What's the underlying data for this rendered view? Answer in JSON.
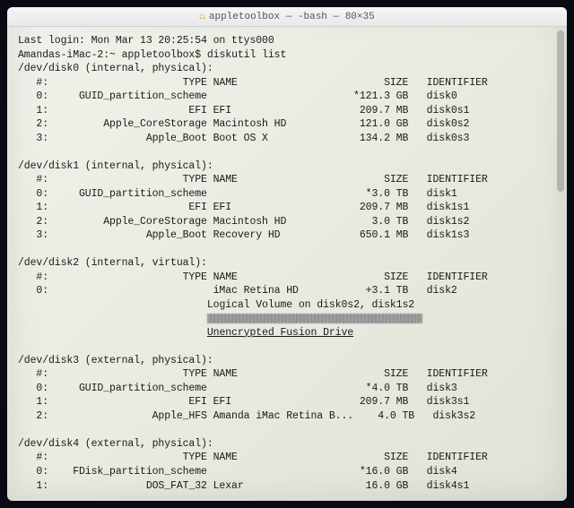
{
  "title": "appletoolbox — -bash — 80×35",
  "lastLogin": "Last login: Mon Mar 13 20:25:54 on ttys000",
  "prompt": "Amandas-iMac-2:~ appletoolbox$",
  "command": "diskutil list",
  "headers": {
    "num": "#:",
    "type": "TYPE",
    "name": "NAME",
    "size": "SIZE",
    "identifier": "IDENTIFIER"
  },
  "disk0": {
    "header": "/dev/disk0 (internal, physical):",
    "rows": [
      {
        "n": "0:",
        "type": "GUID_partition_scheme",
        "name": "",
        "size": "*121.3 GB",
        "id": "disk0"
      },
      {
        "n": "1:",
        "type": "EFI",
        "name": "EFI",
        "size": "209.7 MB",
        "id": "disk0s1"
      },
      {
        "n": "2:",
        "type": "Apple_CoreStorage",
        "name": "Macintosh HD",
        "size": "121.0 GB",
        "id": "disk0s2"
      },
      {
        "n": "3:",
        "type": "Apple_Boot",
        "name": "Boot OS X",
        "size": "134.2 MB",
        "id": "disk0s3"
      }
    ]
  },
  "disk1": {
    "header": "/dev/disk1 (internal, physical):",
    "rows": [
      {
        "n": "0:",
        "type": "GUID_partition_scheme",
        "name": "",
        "size": "*3.0 TB",
        "id": "disk1"
      },
      {
        "n": "1:",
        "type": "EFI",
        "name": "EFI",
        "size": "209.7 MB",
        "id": "disk1s1"
      },
      {
        "n": "2:",
        "type": "Apple_CoreStorage",
        "name": "Macintosh HD",
        "size": "3.0 TB",
        "id": "disk1s2"
      },
      {
        "n": "3:",
        "type": "Apple_Boot",
        "name": "Recovery HD",
        "size": "650.1 MB",
        "id": "disk1s3"
      }
    ]
  },
  "disk2": {
    "header": "/dev/disk2 (internal, virtual):",
    "row0": {
      "n": "0:",
      "type": "",
      "name": "iMac Retina HD",
      "size": "+3.1 TB",
      "id": "disk2"
    },
    "logical": "Logical Volume on disk0s2, disk1s2",
    "fusion": "Unencrypted Fusion Drive"
  },
  "disk3": {
    "header": "/dev/disk3 (external, physical):",
    "rows": [
      {
        "n": "0:",
        "type": "GUID_partition_scheme",
        "name": "",
        "size": "*4.0 TB",
        "id": "disk3"
      },
      {
        "n": "1:",
        "type": "EFI",
        "name": "EFI",
        "size": "209.7 MB",
        "id": "disk3s1"
      },
      {
        "n": "2:",
        "type": "Apple_HFS",
        "name": "Amanda iMac Retina B...",
        "size": "4.0 TB",
        "id": "disk3s2"
      }
    ]
  },
  "disk4": {
    "header": "/dev/disk4 (external, physical):",
    "rows": [
      {
        "n": "0:",
        "type": "FDisk_partition_scheme",
        "name": "",
        "size": "*16.0 GB",
        "id": "disk4"
      },
      {
        "n": "1:",
        "type": "DOS_FAT_32",
        "name": "Lexar",
        "size": "16.0 GB",
        "id": "disk4s1"
      }
    ]
  }
}
